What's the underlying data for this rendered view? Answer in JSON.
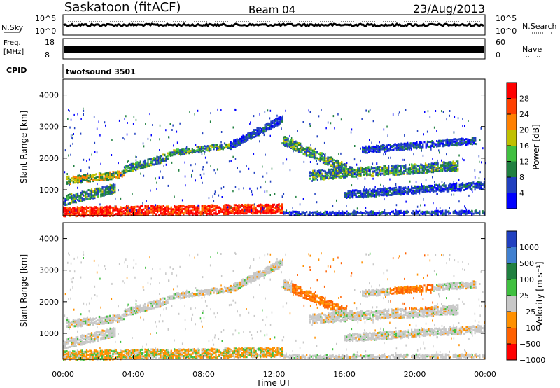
{
  "header": {
    "title": "Saskatoon (fitACF)",
    "beam": "Beam 04",
    "date": "23/Aug/2013"
  },
  "strip_panels": {
    "nsky_label": "N.Sky",
    "nsearch_label": "N.Search",
    "freq_label_line1": "Freq.",
    "freq_label_line2": "[MHz]",
    "nave_label": "Nave",
    "cpid_label": "CPID",
    "cpid_value": "twofsound 3501",
    "noise_left_ticks": [
      "10^5",
      "10^0"
    ],
    "noise_right_ticks": [
      "10^5",
      "10^0"
    ],
    "freq_left_ticks": [
      "18",
      "8"
    ],
    "nave_right_ticks": [
      "60",
      "0"
    ]
  },
  "chart_data": [
    {
      "type": "heatmap",
      "name": "power",
      "ylabel": "Slant Range [km]",
      "xlabel": "",
      "ylim": [
        180,
        4500
      ],
      "yticks": [
        "1000",
        "2000",
        "3000",
        "4000"
      ],
      "xlim": [
        0,
        24
      ],
      "colorbar_label": "Power [dB]",
      "colorbar_ticks": [
        "4",
        "8",
        "12",
        "16",
        "20",
        "24",
        "28"
      ],
      "colors": [
        "#0000ff",
        "#2040c0",
        "#208040",
        "#40c040",
        "#c0c000",
        "#ff8000",
        "#ff4000",
        "#ff0000"
      ]
    },
    {
      "type": "heatmap",
      "name": "velocity",
      "ylabel": "Slant Range [km]",
      "xlabel": "Time UT",
      "ylim": [
        180,
        4500
      ],
      "yticks": [
        "1000",
        "2000",
        "3000",
        "4000"
      ],
      "xlim": [
        0,
        24
      ],
      "xticks": [
        "00:00",
        "04:00",
        "08:00",
        "12:00",
        "16:00",
        "20:00",
        "00:00"
      ],
      "colorbar_label": "Velocity [m s⁻¹]",
      "colorbar_ticks": [
        "1000",
        "500",
        "100",
        "25",
        "−25",
        "−100",
        "−500",
        "−1000"
      ],
      "colors": [
        "#2040c0",
        "#4080d0",
        "#208040",
        "#40c040",
        "#c8c8c8",
        "#ff9000",
        "#ff6000",
        "#ff0000"
      ]
    }
  ]
}
